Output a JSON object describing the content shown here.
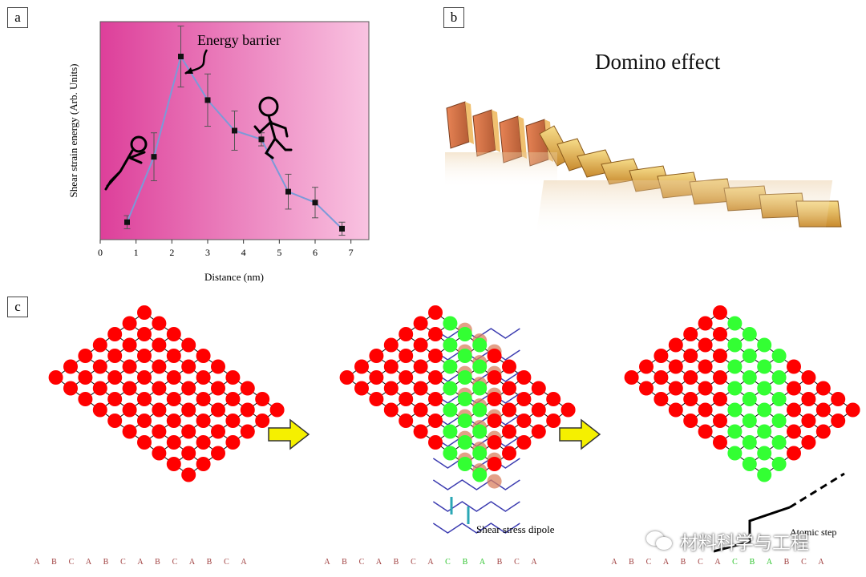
{
  "panel_a": {
    "label": "a",
    "annotation": "Energy barrier",
    "chart_data": {
      "type": "line",
      "xlabel": "Distance (nm)",
      "ylabel": "Shear strain energy (Arb. Units)",
      "xlim": [
        0,
        7.5
      ],
      "ylim": [
        0,
        1
      ],
      "xticks": [
        "0",
        "1",
        "2",
        "3",
        "4",
        "5",
        "6",
        "7"
      ],
      "x": [
        0.75,
        1.5,
        2.25,
        3.0,
        3.75,
        4.5,
        5.25,
        6.0,
        6.75
      ],
      "y": [
        0.08,
        0.38,
        0.84,
        0.64,
        0.5,
        0.46,
        0.22,
        0.17,
        0.05
      ],
      "yerr": [
        0.03,
        0.11,
        0.14,
        0.12,
        0.09,
        0.03,
        0.08,
        0.07,
        0.03
      ],
      "grid": false,
      "line_color": "#7b9ad8",
      "marker_color": "#111111",
      "background": [
        "#dd3f9a",
        "#f9c3e1"
      ]
    }
  },
  "panel_b": {
    "label": "b",
    "title": "Domino effect"
  },
  "panel_c": {
    "label": "c",
    "stacking_sequence": [
      "A",
      "B",
      "C",
      "A",
      "B",
      "C",
      "A",
      "B",
      "C",
      "A",
      "B",
      "C",
      "A"
    ],
    "stacking_sequence_transformed": [
      "A",
      "B",
      "C",
      "A",
      "B",
      "C",
      "A",
      "C",
      "B",
      "A",
      "B",
      "C",
      "A"
    ],
    "dipole_label": "Shear stress dipole",
    "step_label": "Atomic step",
    "colors": {
      "parent": "#ff0000",
      "twin": "#33ff33",
      "arrow": "#f5f000"
    }
  },
  "watermark": {
    "text": "材料科学与工程"
  }
}
